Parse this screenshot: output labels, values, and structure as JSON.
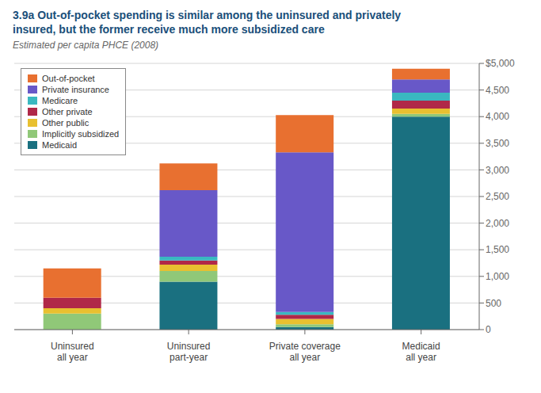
{
  "chart_data": {
    "type": "bar",
    "stacked": true,
    "title": "3.9a Out-of-pocket spending is similar among the uninsured and privately\ninsured, but the former receive much more subsidized care",
    "subtitle": "Estimated per capita PHCE (2008)",
    "categories": [
      "Uninsured\nall year",
      "Uninsured\npart-year",
      "Private coverage\nall year",
      "Medicaid\nall year"
    ],
    "series": [
      {
        "name": "Medicaid",
        "color": "#1a7080",
        "values": [
          0,
          900,
          50,
          4000
        ]
      },
      {
        "name": "Implicitly subsidized",
        "color": "#90c878",
        "values": [
          300,
          200,
          50,
          50
        ]
      },
      {
        "name": "Other public",
        "color": "#e8c030",
        "values": [
          100,
          120,
          100,
          100
        ]
      },
      {
        "name": "Other private",
        "color": "#b02848",
        "values": [
          200,
          80,
          80,
          150
        ]
      },
      {
        "name": "Medicare",
        "color": "#3ab8c0",
        "values": [
          0,
          70,
          50,
          150
        ]
      },
      {
        "name": "Private insurance",
        "color": "#6858c8",
        "values": [
          0,
          1250,
          3000,
          250
        ]
      },
      {
        "name": "Out-of-pocket",
        "color": "#e87030",
        "values": [
          550,
          500,
          700,
          200
        ]
      }
    ],
    "ylim": [
      0,
      5000
    ],
    "yticks": [
      0,
      500,
      {
        "value": 1000,
        "label": "1,000"
      },
      {
        "value": 1500,
        "label": "1,500"
      },
      {
        "value": 2000,
        "label": "2,000"
      },
      {
        "value": 2500,
        "label": "2,500"
      },
      {
        "value": 3000,
        "label": "3,000"
      },
      {
        "value": 3500,
        "label": "3,500"
      },
      {
        "value": 4000,
        "label": "4,000"
      },
      {
        "value": 4500,
        "label": "4,500"
      },
      {
        "value": 5000,
        "label": "$5,000"
      }
    ],
    "grid": true,
    "legend": "upper left"
  }
}
